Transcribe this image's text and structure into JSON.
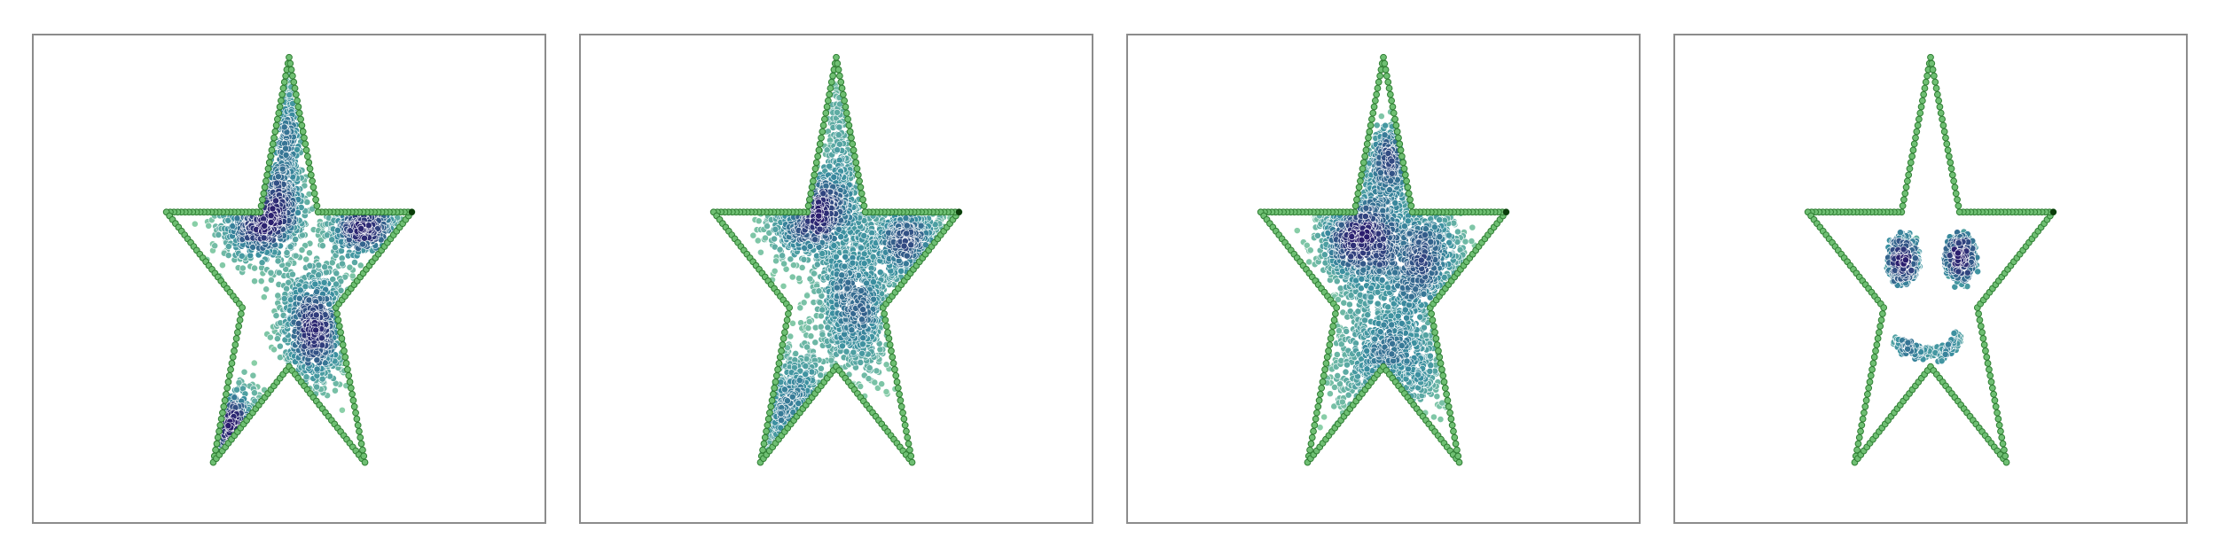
{
  "figure": {
    "panel_count": 4,
    "colors": {
      "outline_fill": "#6fbf73",
      "outline_stroke": "#2e7d32",
      "outline_endpoint": "#0b3d0b",
      "density_low": "#8fd3a8",
      "density_mid": "#3a8fa0",
      "density_high": "#2b1d6e",
      "frame": "#8c8c8c"
    }
  },
  "chart_data": [
    {
      "type": "scatter",
      "shape": "star-outline",
      "title": "",
      "xlabel": "",
      "ylabel": "",
      "xlim": [
        -1.1,
        1.1
      ],
      "ylim": [
        -1.1,
        1.1
      ],
      "grid": false,
      "ticks": false,
      "outline_points": 250,
      "interior_points": 2600,
      "clusters": [
        {
          "x": -0.22,
          "y": 0.3,
          "sx": 0.16,
          "sy": 0.1,
          "weight": 0.28
        },
        {
          "x": 0.2,
          "y": -0.2,
          "sx": 0.15,
          "sy": 0.14,
          "weight": 0.3
        },
        {
          "x": 0.58,
          "y": 0.28,
          "sx": 0.15,
          "sy": 0.08,
          "weight": 0.18
        },
        {
          "x": 0.0,
          "y": 0.7,
          "sx": 0.07,
          "sy": 0.22,
          "weight": 0.12
        },
        {
          "x": -0.45,
          "y": -0.7,
          "sx": 0.12,
          "sy": 0.1,
          "weight": 0.12
        }
      ]
    },
    {
      "type": "scatter",
      "shape": "star-outline",
      "title": "",
      "xlabel": "",
      "ylabel": "",
      "xlim": [
        -1.1,
        1.1
      ],
      "ylim": [
        -1.1,
        1.1
      ],
      "grid": false,
      "ticks": false,
      "outline_points": 250,
      "interior_points": 2600,
      "clusters": [
        {
          "x": -0.2,
          "y": 0.3,
          "sx": 0.18,
          "sy": 0.1,
          "weight": 0.28
        },
        {
          "x": 0.15,
          "y": -0.1,
          "sx": 0.18,
          "sy": 0.18,
          "weight": 0.32
        },
        {
          "x": 0.55,
          "y": 0.18,
          "sx": 0.16,
          "sy": 0.1,
          "weight": 0.18
        },
        {
          "x": -0.35,
          "y": -0.6,
          "sx": 0.18,
          "sy": 0.15,
          "weight": 0.14
        },
        {
          "x": 0.03,
          "y": 0.6,
          "sx": 0.07,
          "sy": 0.2,
          "weight": 0.08
        }
      ]
    },
    {
      "type": "scatter",
      "shape": "star-outline",
      "title": "",
      "xlabel": "",
      "ylabel": "",
      "xlim": [
        -1.1,
        1.1
      ],
      "ylim": [
        -1.1,
        1.1
      ],
      "grid": false,
      "ticks": false,
      "outline_points": 250,
      "interior_points": 2600,
      "clusters": [
        {
          "x": -0.2,
          "y": 0.2,
          "sx": 0.18,
          "sy": 0.12,
          "weight": 0.3
        },
        {
          "x": 0.28,
          "y": 0.1,
          "sx": 0.2,
          "sy": 0.15,
          "weight": 0.3
        },
        {
          "x": 0.05,
          "y": -0.35,
          "sx": 0.25,
          "sy": 0.16,
          "weight": 0.28
        },
        {
          "x": 0.1,
          "y": 0.55,
          "sx": 0.12,
          "sy": 0.1,
          "weight": 0.12
        }
      ]
    },
    {
      "type": "scatter",
      "shape": "star-outline",
      "title": "",
      "xlabel": "",
      "ylabel": "",
      "xlim": [
        -1.1,
        1.1
      ],
      "ylim": [
        -1.1,
        1.1
      ],
      "grid": false,
      "ticks": false,
      "outline_points": 250,
      "interior_points": 700,
      "features": [
        {
          "kind": "ring",
          "x": -0.21,
          "y": 0.1,
          "r": 0.1,
          "weight": 0.35
        },
        {
          "kind": "ring",
          "x": 0.23,
          "y": 0.1,
          "r": 0.1,
          "weight": 0.35
        },
        {
          "kind": "smile",
          "x": -0.02,
          "y": -0.22,
          "rx": 0.26,
          "ry": 0.1,
          "weight": 0.3
        }
      ]
    }
  ]
}
